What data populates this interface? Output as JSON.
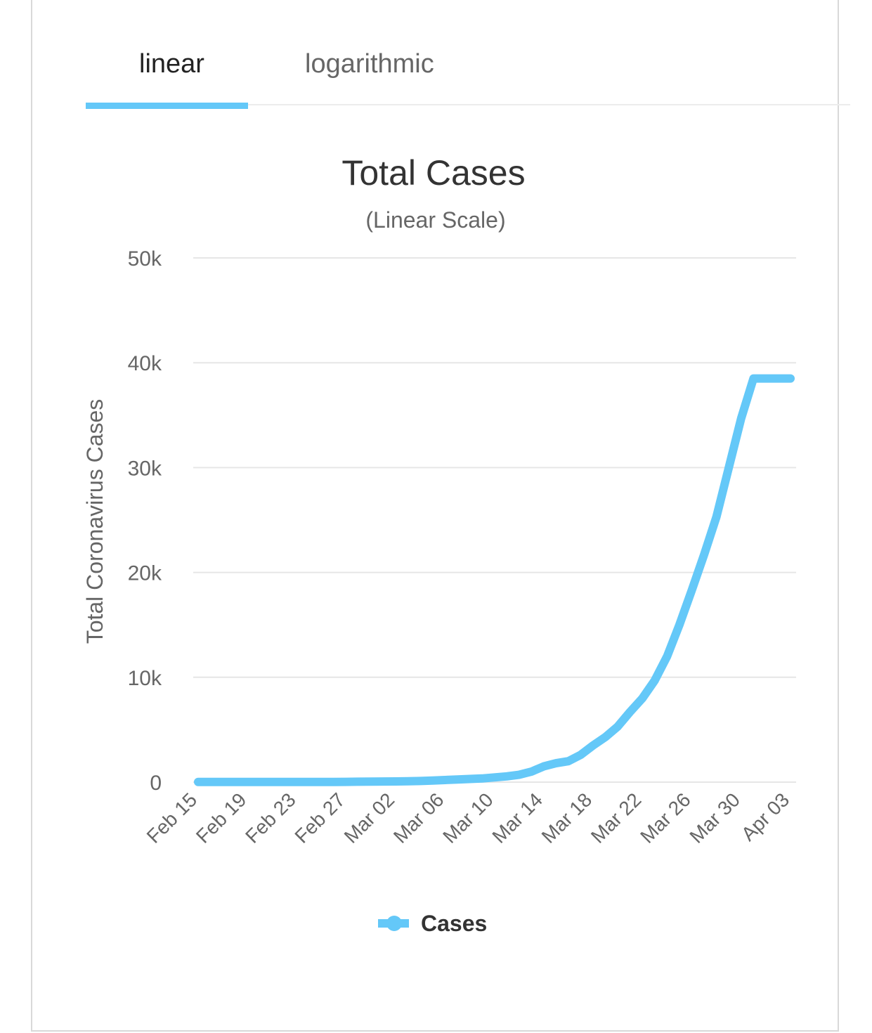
{
  "tabs": [
    {
      "label": "linear",
      "active": true
    },
    {
      "label": "logarithmic",
      "active": false
    }
  ],
  "colors": {
    "accent": "#64c8f8",
    "text": "#333333",
    "muted": "#666666",
    "grid": "#e6e6e6"
  },
  "chart_data": {
    "type": "line",
    "title": "Total Cases",
    "subtitle": "(Linear Scale)",
    "ylabel": "Total Coronavirus Cases",
    "xlabel": "",
    "ylim": [
      0,
      50000
    ],
    "yticks": [
      0,
      10000,
      20000,
      30000,
      40000,
      50000
    ],
    "ytick_labels": [
      "0",
      "10k",
      "20k",
      "30k",
      "40k",
      "50k"
    ],
    "xtick_labels": [
      "Feb 15",
      "Feb 19",
      "Feb 23",
      "Feb 27",
      "Mar 02",
      "Mar 06",
      "Mar 10",
      "Mar 14",
      "Mar 18",
      "Mar 22",
      "Mar 26",
      "Mar 30",
      "Apr 03"
    ],
    "grid": true,
    "legend_position": "bottom",
    "x": [
      "Feb 15",
      "Feb 16",
      "Feb 17",
      "Feb 18",
      "Feb 19",
      "Feb 20",
      "Feb 21",
      "Feb 22",
      "Feb 23",
      "Feb 24",
      "Feb 25",
      "Feb 26",
      "Feb 27",
      "Feb 28",
      "Feb 29",
      "Mar 01",
      "Mar 02",
      "Mar 03",
      "Mar 04",
      "Mar 05",
      "Mar 06",
      "Mar 07",
      "Mar 08",
      "Mar 09",
      "Mar 10",
      "Mar 11",
      "Mar 12",
      "Mar 13",
      "Mar 14",
      "Mar 15",
      "Mar 16",
      "Mar 17",
      "Mar 18",
      "Mar 19",
      "Mar 20",
      "Mar 21",
      "Mar 22",
      "Mar 23",
      "Mar 24",
      "Mar 25",
      "Mar 26",
      "Mar 27",
      "Mar 28",
      "Mar 29",
      "Mar 30",
      "Mar 31",
      "Apr 01",
      "Apr 02",
      "Apr 03"
    ],
    "series": [
      {
        "name": "Cases",
        "color": "#64c8f8",
        "values": [
          20,
          20,
          20,
          20,
          20,
          20,
          20,
          20,
          20,
          20,
          20,
          20,
          30,
          40,
          50,
          60,
          70,
          80,
          110,
          150,
          200,
          250,
          300,
          350,
          450,
          550,
          700,
          1000,
          1500,
          1800,
          2000,
          2600,
          3500,
          4300,
          5300,
          6700,
          8000,
          9700,
          12000,
          15000,
          18300,
          21700,
          25300,
          30000,
          34700,
          38500,
          38500,
          38500,
          38500
        ]
      }
    ]
  }
}
